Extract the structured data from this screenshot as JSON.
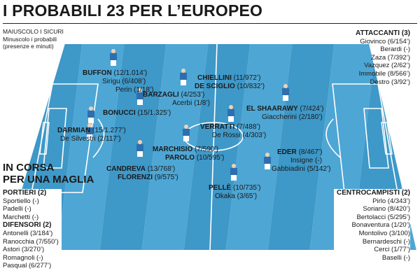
{
  "title": "I PROBABILI 23 PER L’EUROPEO",
  "legend": {
    "line1": "MAIUSCOLO I SICURI",
    "line2": "Minuscolo i probabili",
    "line3": "(presenze e minuti)"
  },
  "colors": {
    "pitch_dark": "#3e98c8",
    "pitch_light": "#4ea6d4",
    "lines": "#ffffff",
    "shirt": "#2d6fae"
  },
  "players": {
    "buffon": {
      "name": "BUFFON",
      "stats": " (12/1.014’)"
    },
    "sirigu": {
      "name": "Sirigu",
      "stats": " (6/408’)"
    },
    "perin": {
      "name": "Perin",
      "stats": " (1/18’)"
    },
    "chiellini": {
      "name": "CHIELLINI",
      "stats": " (11/972’)"
    },
    "desciglio": {
      "name": "DE SCIGLIO",
      "stats": " (10/832’)"
    },
    "barzagli": {
      "name": "BARZAGLI",
      "stats": " (4/253’)"
    },
    "acerbi": {
      "name": "Acerbi",
      "stats": " (1/8’)"
    },
    "bonucci": {
      "name": "BONUCCI",
      "stats": " (15/1.325’)"
    },
    "elshaarawy": {
      "name": "EL SHAARAWY",
      "stats": " (7/424’)"
    },
    "giaccherini": {
      "name": "Giaccherini",
      "stats": " (2/180’)"
    },
    "verratti": {
      "name": "VERRATTI",
      "stats": " (7/488’)"
    },
    "derossi": {
      "name": "De Rossi",
      "stats": " (4/303’)"
    },
    "darmian": {
      "name": "DARMIAN",
      "stats": " (15/1.277’)"
    },
    "desilvestri": {
      "name": "De Silvestri",
      "stats": " (2/117’)"
    },
    "marchisio": {
      "name": "MARCHISIO",
      "stats": " (7/590’)"
    },
    "parolo": {
      "name": "PAROLO",
      "stats": " (10/595’)"
    },
    "eder": {
      "name": "EDER",
      "stats": " (8/467’)"
    },
    "insigne": {
      "name": "Insigne",
      "stats": " (-)"
    },
    "gabbiadini": {
      "name": "Gabbiadini",
      "stats": " (5/142’)"
    },
    "candreva": {
      "name": "CANDREVA",
      "stats": " (13/768’)"
    },
    "florenzi": {
      "name": "FLORENZI",
      "stats": " (9/575’)"
    },
    "pelle": {
      "name": "PELLÈ",
      "stats": " (10/735’)"
    },
    "okaka": {
      "name": "Okaka",
      "stats": " (3/65’)"
    }
  },
  "attaccanti": {
    "heading": "ATTACCANTI (3)",
    "items": [
      "Giovinco (6/154’)",
      "Berardi (-)",
      "Zaza (7/392’)",
      "Vazquez (2/62’)",
      "Immobile (8/566’)",
      "Destro (3/92’)"
    ]
  },
  "in_corsa": {
    "line1": "IN CORSA",
    "line2": "PER UNA MAGLIA"
  },
  "portieri": {
    "heading": "PORTIERI (2)",
    "items": [
      "Sportiello (-)",
      "Padelli (-)",
      "Marchetti (-)"
    ]
  },
  "difensori": {
    "heading": "DIFENSORI (2)",
    "items": [
      "Antonelli (3/184’)",
      "Ranocchia (7/550’)",
      "Astori (3/270’)",
      "Romagnoli (-)",
      "Pasqual (6/277’)"
    ]
  },
  "centrocampisti": {
    "heading": "CENTROCAMPISTI (2)",
    "items": [
      "Pirlo (4/343’)",
      "Soriano (8/420’)",
      "Bertolacci (5/295’)",
      "Bonaventura (1/20’)",
      "Montolivo (3/100)",
      "Bernardeschi (-)",
      "Cerci (1/77’)",
      "Baselli (-)"
    ]
  }
}
